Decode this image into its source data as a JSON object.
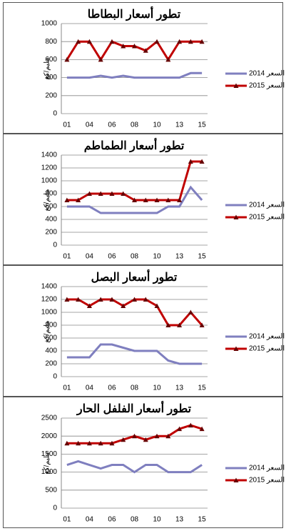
{
  "chart_data": [
    {
      "type": "line",
      "title": "تطور أسعار البطاطا",
      "ylabel": "مليم/كغ",
      "categories": [
        "01",
        null,
        "04",
        null,
        "06",
        null,
        "08",
        null,
        "10",
        null,
        "13",
        null,
        "15"
      ],
      "series": [
        {
          "name": "2014 السعر",
          "color": "#7f7fbf",
          "marker": "none",
          "values": [
            400,
            400,
            400,
            420,
            400,
            420,
            400,
            400,
            400,
            400,
            400,
            450,
            450
          ]
        },
        {
          "name": "2015 السعر",
          "color": "#c00000",
          "marker": "triangle",
          "values": [
            600,
            800,
            800,
            600,
            800,
            750,
            750,
            700,
            800,
            600,
            800,
            800,
            800
          ]
        }
      ],
      "ylim": [
        0,
        1000
      ],
      "yticks": [
        0,
        200,
        400,
        600,
        800,
        1000
      ],
      "grid": true
    },
    {
      "type": "line",
      "title": "تطور أسعار الطماطم",
      "ylabel": "مليم/كغ",
      "categories": [
        "01",
        null,
        "04",
        null,
        "06",
        null,
        "08",
        null,
        "10",
        null,
        "13",
        null,
        "15"
      ],
      "series": [
        {
          "name": "2014 السعر",
          "color": "#7f7fbf",
          "marker": "none",
          "values": [
            600,
            600,
            600,
            500,
            500,
            500,
            500,
            500,
            500,
            600,
            600,
            900,
            700
          ]
        },
        {
          "name": "2015 السعر",
          "color": "#c00000",
          "marker": "triangle",
          "values": [
            700,
            700,
            800,
            800,
            800,
            800,
            700,
            700,
            700,
            700,
            700,
            1300,
            1300
          ]
        }
      ],
      "ylim": [
        0,
        1400
      ],
      "yticks": [
        0,
        200,
        400,
        600,
        800,
        1000,
        1200,
        1400
      ],
      "grid": true
    },
    {
      "type": "line",
      "title": "تطور أسعار البصل",
      "ylabel": "مليم/كغ",
      "categories": [
        "01",
        null,
        "04",
        null,
        "06",
        null,
        "08",
        null,
        "10",
        null,
        "13",
        null,
        "15"
      ],
      "series": [
        {
          "name": "2014 السعر",
          "color": "#7f7fbf",
          "marker": "none",
          "values": [
            300,
            300,
            300,
            500,
            500,
            450,
            400,
            400,
            400,
            250,
            200,
            200,
            200
          ]
        },
        {
          "name": "2015 السعر",
          "color": "#c00000",
          "marker": "triangle",
          "values": [
            1200,
            1200,
            1100,
            1200,
            1200,
            1100,
            1200,
            1200,
            1100,
            800,
            800,
            1000,
            800
          ]
        }
      ],
      "ylim": [
        0,
        1400
      ],
      "yticks": [
        0,
        200,
        400,
        600,
        800,
        1000,
        1200,
        1400
      ],
      "grid": true
    },
    {
      "type": "line",
      "title": "تطور أسعار الفلفل الحار",
      "ylabel": "مليم/كغ",
      "categories": [
        "01",
        null,
        "04",
        null,
        "06",
        null,
        "08",
        null,
        "10",
        null,
        "13",
        null,
        "15"
      ],
      "series": [
        {
          "name": "2014 السعر",
          "color": "#7f7fbf",
          "marker": "none",
          "values": [
            1200,
            1300,
            1200,
            1100,
            1200,
            1200,
            1000,
            1200,
            1200,
            1000,
            1000,
            1000,
            1200
          ]
        },
        {
          "name": "2015 السعر",
          "color": "#c00000",
          "marker": "triangle",
          "values": [
            1800,
            1800,
            1800,
            1800,
            1800,
            1900,
            2000,
            1900,
            2000,
            2000,
            2200,
            2300,
            2200
          ]
        }
      ],
      "ylim": [
        0,
        2500
      ],
      "yticks": [
        0,
        500,
        1000,
        1500,
        2000,
        2500
      ],
      "grid": true
    }
  ]
}
